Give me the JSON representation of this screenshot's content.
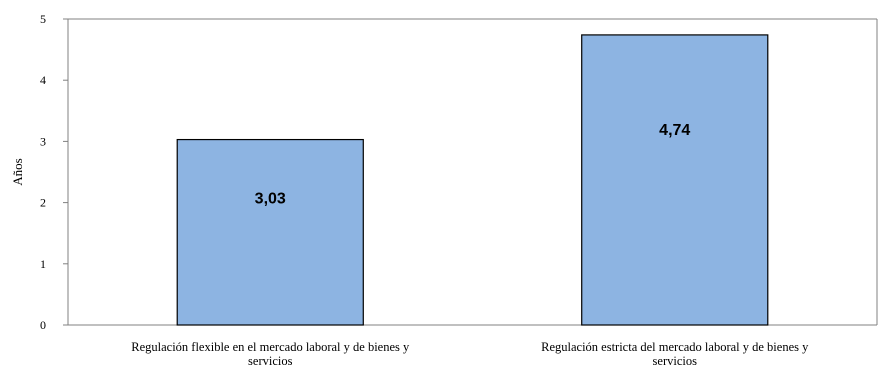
{
  "chart_data": {
    "type": "bar",
    "title": "",
    "ylabel": "Años",
    "xlabel": "",
    "ylim": [
      0,
      5
    ],
    "yticks": [
      0,
      1,
      2,
      3,
      4,
      5
    ],
    "grid": false,
    "categories": [
      [
        "Regulación flexible en el mercado laboral y de bienes y",
        "servicios"
      ],
      [
        "Regulación estricta del mercado laboral y de bienes y",
        "servicios"
      ]
    ],
    "values": [
      3.03,
      4.74
    ],
    "data_labels": [
      "3,03",
      "4,74"
    ],
    "colors": {
      "bar_fill": "#8DB4E2",
      "bar_stroke": "#000000",
      "axis": "#808080",
      "frame": "#808080"
    }
  }
}
